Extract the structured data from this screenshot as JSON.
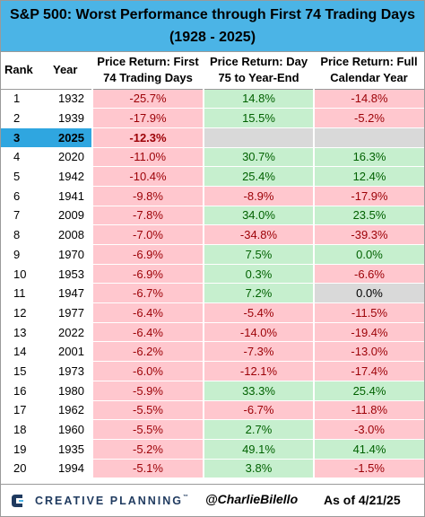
{
  "title_line1": "S&P 500: Worst Performance through First 74 Trading Days",
  "title_line2": "(1928 - 2025)",
  "headers": {
    "rank": "Rank",
    "year": "Year",
    "first74": [
      "Price Return: First",
      "74 Trading Days"
    ],
    "rest": [
      "Price Return: Day",
      "75 to Year-End"
    ],
    "full": [
      "Price Return: Full",
      "Calendar  Year"
    ]
  },
  "chart_data": {
    "type": "table",
    "title": "S&P 500: Worst Performance through First 74 Trading Days (1928 - 2025)",
    "columns": [
      "Rank",
      "Year",
      "Price Return: First 74 Trading Days",
      "Price Return: Day 75 to Year-End",
      "Price Return: Full Calendar Year"
    ],
    "rows": [
      {
        "rank": "1",
        "year": "1932",
        "first74": "-25.7%",
        "rest": "14.8%",
        "full": "-14.8%"
      },
      {
        "rank": "2",
        "year": "1939",
        "first74": "-17.9%",
        "rest": "15.5%",
        "full": "-5.2%"
      },
      {
        "rank": "3",
        "year": "2025",
        "first74": "-12.3%",
        "rest": "",
        "full": "",
        "highlight": true
      },
      {
        "rank": "4",
        "year": "2020",
        "first74": "-11.0%",
        "rest": "30.7%",
        "full": "16.3%"
      },
      {
        "rank": "5",
        "year": "1942",
        "first74": "-10.4%",
        "rest": "25.4%",
        "full": "12.4%"
      },
      {
        "rank": "6",
        "year": "1941",
        "first74": "-9.8%",
        "rest": "-8.9%",
        "full": "-17.9%"
      },
      {
        "rank": "7",
        "year": "2009",
        "first74": "-7.8%",
        "rest": "34.0%",
        "full": "23.5%"
      },
      {
        "rank": "8",
        "year": "2008",
        "first74": "-7.0%",
        "rest": "-34.8%",
        "full": "-39.3%"
      },
      {
        "rank": "9",
        "year": "1970",
        "first74": "-6.9%",
        "rest": "7.5%",
        "full": "0.0%"
      },
      {
        "rank": "10",
        "year": "1953",
        "first74": "-6.9%",
        "rest": "0.3%",
        "full": "-6.6%"
      },
      {
        "rank": "11",
        "year": "1947",
        "first74": "-6.7%",
        "rest": "7.2%",
        "full": "0.0%"
      },
      {
        "rank": "12",
        "year": "1977",
        "first74": "-6.4%",
        "rest": "-5.4%",
        "full": "-11.5%"
      },
      {
        "rank": "13",
        "year": "2022",
        "first74": "-6.4%",
        "rest": "-14.0%",
        "full": "-19.4%"
      },
      {
        "rank": "14",
        "year": "2001",
        "first74": "-6.2%",
        "rest": "-7.3%",
        "full": "-13.0%"
      },
      {
        "rank": "15",
        "year": "1973",
        "first74": "-6.0%",
        "rest": "-12.1%",
        "full": "-17.4%"
      },
      {
        "rank": "16",
        "year": "1980",
        "first74": "-5.9%",
        "rest": "33.3%",
        "full": "25.4%"
      },
      {
        "rank": "17",
        "year": "1962",
        "first74": "-5.5%",
        "rest": "-6.7%",
        "full": "-11.8%"
      },
      {
        "rank": "18",
        "year": "1960",
        "first74": "-5.5%",
        "rest": "2.7%",
        "full": "-3.0%"
      },
      {
        "rank": "19",
        "year": "1935",
        "first74": "-5.2%",
        "rest": "49.1%",
        "full": "41.4%"
      },
      {
        "rank": "20",
        "year": "1994",
        "first74": "-5.1%",
        "rest": "3.8%",
        "full": "-1.5%"
      }
    ]
  },
  "footer": {
    "logo_text": "CREATIVE PLANNING",
    "logo_tm": "™",
    "handle": "@CharlieBilello",
    "as_of": "As of 4/21/25",
    "icon": "creative-planning-logo-icon"
  },
  "colors": {
    "title_bg": "#4bb4e6",
    "highlight": "#2fa6e0",
    "neg_bg": "#ffc7ce",
    "neg_text": "#9c0006",
    "pos_bg": "#c6efce",
    "pos_text": "#006100",
    "neutral_bg": "#d9d9d9"
  }
}
